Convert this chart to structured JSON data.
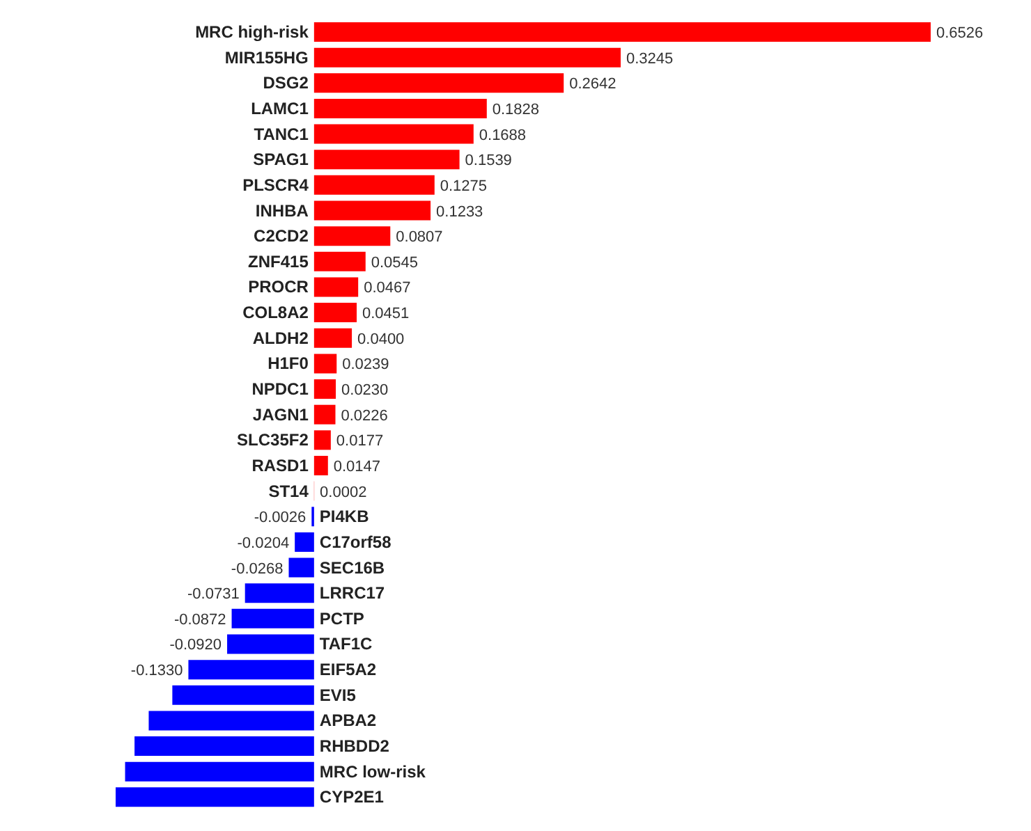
{
  "chart_data": {
    "type": "bar",
    "orientation": "horizontal",
    "categories": [
      "MRC high-risk",
      "MIR155HG",
      "DSG2",
      "LAMC1",
      "TANC1",
      "SPAG1",
      "PLSCR4",
      "INHBA",
      "C2CD2",
      "ZNF415",
      "PROCR",
      "COL8A2",
      "ALDH2",
      "H1F0",
      "NPDC1",
      "JAGN1",
      "SLC35F2",
      "RASD1",
      "ST14",
      "PI4KB",
      "C17orf58",
      "SEC16B",
      "LRRC17",
      "PCTP",
      "TAF1C",
      "EIF5A2",
      "EVI5",
      "APBA2",
      "RHBDD2",
      "MRC low-risk",
      "CYP2E1"
    ],
    "values": [
      0.6526,
      0.3245,
      0.2642,
      0.1828,
      0.1688,
      0.1539,
      0.1275,
      0.1233,
      0.0807,
      0.0545,
      0.0467,
      0.0451,
      0.04,
      0.0239,
      0.023,
      0.0226,
      0.0177,
      0.0147,
      0.0002,
      -0.0026,
      -0.0204,
      -0.0268,
      -0.0731,
      -0.0872,
      -0.092,
      -0.133,
      -0.15,
      -0.175,
      -0.19,
      -0.2,
      -0.21
    ],
    "value_labels": [
      "0.6526",
      "0.3245",
      "0.2642",
      "0.1828",
      "0.1688",
      "0.1539",
      "0.1275",
      "0.1233",
      "0.0807",
      "0.0545",
      "0.0467",
      "0.0451",
      "0.0400",
      "0.0239",
      "0.0230",
      "0.0226",
      "0.0177",
      "0.0147",
      "0.0002",
      "-0.0026",
      "-0.0204",
      "-0.0268",
      "-0.0731",
      "-0.0872",
      "-0.0920",
      "-0.1330",
      null,
      null,
      null,
      null,
      null
    ],
    "colors": [
      "#ff0000",
      "#ff0000",
      "#ff0000",
      "#ff0000",
      "#ff0000",
      "#ff0000",
      "#ff0000",
      "#ff0000",
      "#ff0000",
      "#ff0000",
      "#ff0000",
      "#ff0000",
      "#ff0000",
      "#ff0000",
      "#ff0000",
      "#ff0000",
      "#ff0000",
      "#ff0000",
      "#ff0000",
      "#0000ff",
      "#0000ff",
      "#0000ff",
      "#0000ff",
      "#0000ff",
      "#0000ff",
      "#0000ff",
      "#0000ff",
      "#0000ff",
      "#0000ff",
      "#0000ff",
      "#0000ff"
    ],
    "tick_labels": false
  }
}
